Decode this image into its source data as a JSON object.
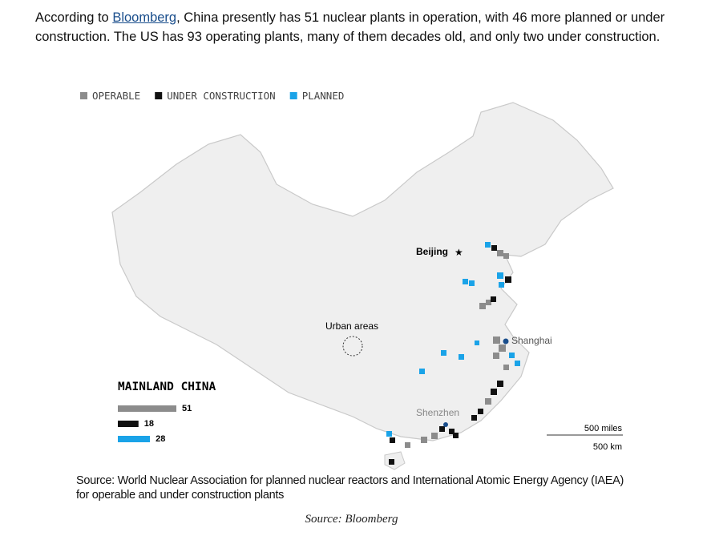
{
  "intro": {
    "before": "According to ",
    "link": "Bloomberg",
    "after": ", China presently has 51 nuclear plants in operation, with 46 more planned or under construction. The US has 93 operating plants, many of them decades old, and only two under construction."
  },
  "map": {
    "legend": [
      {
        "label": "OPERABLE",
        "color": "#8c8c8c"
      },
      {
        "label": "UNDER CONSTRUCTION",
        "color": "#111111"
      },
      {
        "label": "PLANNED",
        "color": "#1aa3e8"
      }
    ],
    "places": {
      "beijing": "Beijing",
      "shanghai": "Shanghai",
      "shenzhen": "Shenzhen",
      "urban": "Urban areas"
    },
    "summary": {
      "title": "MAINLAND CHINA",
      "values": [
        51,
        18,
        28
      ]
    },
    "scale": {
      "miles": "500 miles",
      "km": "500 km"
    },
    "source": "Source: World Nuclear Association for planned nuclear reactors and International Atomic Energy Agency (IAEA) for operable and under construction plants"
  },
  "caption": "Source: Bloomberg"
}
